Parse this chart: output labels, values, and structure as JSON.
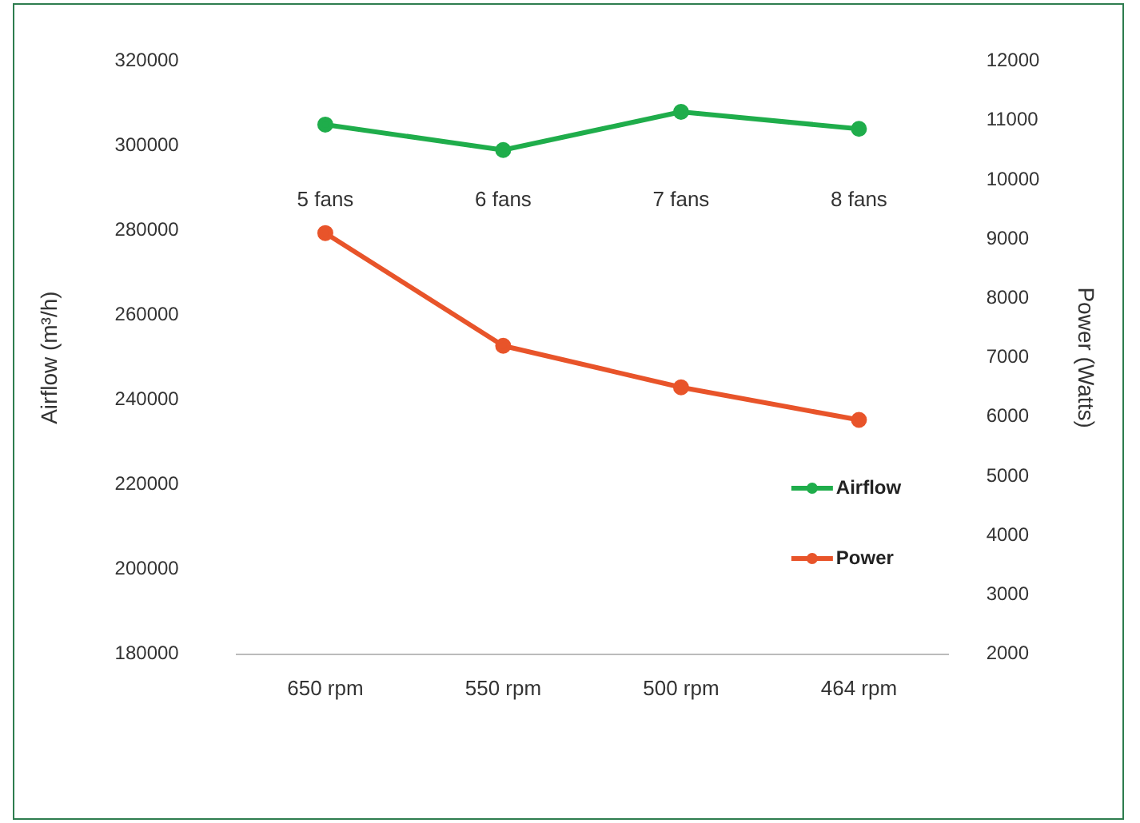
{
  "chart_data": {
    "type": "line",
    "categories": [
      "650 rpm",
      "550 rpm",
      "500 rpm",
      "464 rpm"
    ],
    "series": [
      {
        "name": "Airflow",
        "color": "#1fad4b",
        "values": [
          305000,
          299000,
          308000,
          304000
        ]
      },
      {
        "name": "Power",
        "color": "#e8542a",
        "values": [
          9100,
          7200,
          6500,
          5950
        ],
        "axis": "y2"
      }
    ],
    "ylabel": "Airflow (m³/h)",
    "y2label": "Power (Watts)",
    "ylim": [
      180000,
      320000
    ],
    "yticks": [
      180000,
      200000,
      220000,
      240000,
      260000,
      280000,
      300000,
      320000
    ],
    "y2lim": [
      2000,
      12000
    ],
    "y2ticks": [
      2000,
      3000,
      4000,
      5000,
      6000,
      7000,
      8000,
      9000,
      10000,
      11000,
      12000
    ],
    "annotations": [
      "5 fans",
      "6 fans",
      "7 fans",
      "8 fans"
    ],
    "grid": false,
    "legend": "right",
    "marker": "circle",
    "line_style": "solid"
  }
}
